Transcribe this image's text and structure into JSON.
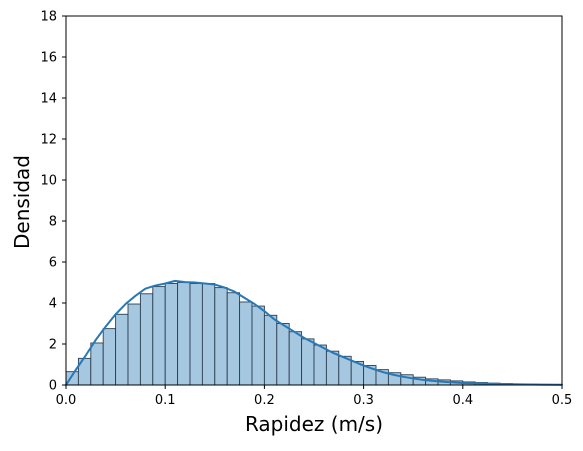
{
  "chart_data": {
    "type": "histogram",
    "xlabel": "Rapidez (m/s)",
    "ylabel": "Densidad",
    "xlim": [
      0.0,
      0.5
    ],
    "ylim": [
      0,
      18
    ],
    "xticks": [
      "0.0",
      "0.1",
      "0.2",
      "0.3",
      "0.4",
      "0.5"
    ],
    "yticks": [
      "0",
      "2",
      "4",
      "6",
      "8",
      "10",
      "12",
      "14",
      "16",
      "18"
    ],
    "grid": false,
    "legend": "none",
    "bin_width": 0.0125,
    "bins": {
      "x_start": [
        0.0,
        0.0125,
        0.025,
        0.0375,
        0.05,
        0.0625,
        0.075,
        0.0875,
        0.1,
        0.1125,
        0.125,
        0.1375,
        0.15,
        0.1625,
        0.175,
        0.1875,
        0.2,
        0.2125,
        0.225,
        0.2375,
        0.25,
        0.2625,
        0.275,
        0.2875,
        0.3,
        0.3125,
        0.325,
        0.3375,
        0.35,
        0.3625,
        0.375,
        0.3875,
        0.4,
        0.4125,
        0.425,
        0.4375,
        0.45,
        0.4625,
        0.475,
        0.4875
      ],
      "density": [
        0.65,
        1.3,
        2.05,
        2.75,
        3.45,
        3.95,
        4.45,
        4.8,
        4.95,
        5.0,
        4.95,
        4.95,
        4.75,
        4.5,
        4.05,
        3.85,
        3.4,
        3.0,
        2.6,
        2.25,
        1.95,
        1.65,
        1.4,
        1.15,
        0.95,
        0.75,
        0.6,
        0.5,
        0.38,
        0.3,
        0.25,
        0.2,
        0.15,
        0.12,
        0.09,
        0.07,
        0.05,
        0.04,
        0.03,
        0.02
      ]
    },
    "kde": {
      "x": [
        0.0,
        0.01,
        0.02,
        0.03,
        0.04,
        0.05,
        0.06,
        0.07,
        0.08,
        0.09,
        0.1,
        0.11,
        0.12,
        0.13,
        0.14,
        0.15,
        0.16,
        0.17,
        0.18,
        0.19,
        0.2,
        0.21,
        0.22,
        0.23,
        0.24,
        0.25,
        0.26,
        0.27,
        0.28,
        0.29,
        0.3,
        0.31,
        0.32,
        0.33,
        0.34,
        0.35,
        0.36,
        0.37,
        0.38,
        0.39,
        0.4,
        0.42,
        0.44,
        0.46,
        0.48,
        0.5
      ],
      "y": [
        0.0,
        0.75,
        1.45,
        2.2,
        2.85,
        3.45,
        3.95,
        4.35,
        4.7,
        4.85,
        4.95,
        5.08,
        5.02,
        5.0,
        4.95,
        4.9,
        4.75,
        4.55,
        4.25,
        3.95,
        3.6,
        3.2,
        2.9,
        2.6,
        2.3,
        2.05,
        1.8,
        1.55,
        1.35,
        1.15,
        0.95,
        0.78,
        0.62,
        0.5,
        0.4,
        0.32,
        0.25,
        0.2,
        0.16,
        0.13,
        0.1,
        0.07,
        0.05,
        0.03,
        0.02,
        0.01
      ]
    },
    "colors": {
      "bar_fill": "#a5c7e0",
      "bar_stroke": "#2d3e50",
      "kde_line": "#2878b5",
      "axis": "#000000"
    }
  }
}
